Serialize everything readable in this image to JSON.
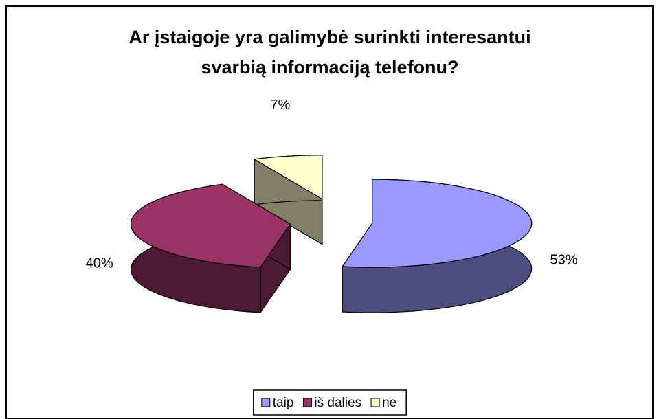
{
  "chart_data": {
    "type": "pie",
    "title_lines": [
      "Ar įstaigoje yra galimybė surinkti interesantui",
      "svarbią informaciją telefonu?"
    ],
    "categories": [
      "taip",
      "iš dalies",
      "ne"
    ],
    "values": [
      53,
      40,
      7
    ],
    "value_labels": [
      "53%",
      "40%",
      "7%"
    ],
    "colors": [
      "#9999ff",
      "#993366",
      "#ffffcc"
    ],
    "legend": "bottom",
    "exploded": true,
    "three_d": true
  }
}
